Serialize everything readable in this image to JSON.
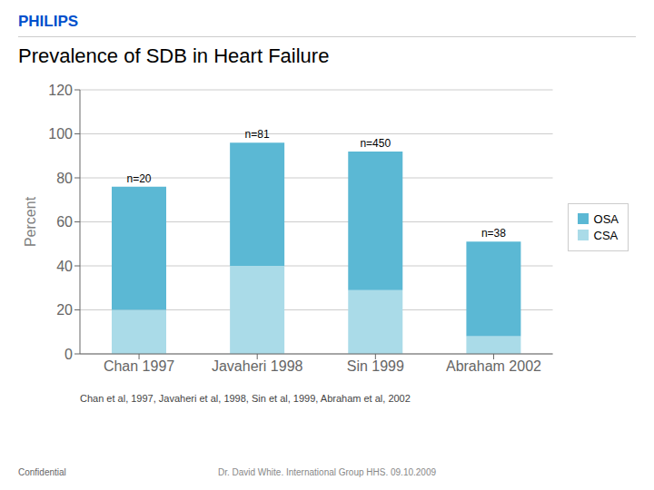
{
  "chart_data": {
    "type": "bar",
    "title": "Prevalence of SDB in Heart Failure",
    "y_label": "Percent",
    "categories": [
      "Chan 1997",
      "Javaheri 1998",
      "Sin 1999",
      "Abraham 2002"
    ],
    "series": [
      {
        "name": "CSA",
        "color": "#aadbe8",
        "values": [
          20,
          40,
          29,
          8
        ]
      },
      {
        "name": "OSA",
        "color": "#5bb8d4",
        "values": [
          56,
          56,
          63,
          43
        ]
      }
    ],
    "n_labels": [
      "n=20",
      "n=81",
      "n=450",
      "n=38"
    ],
    "stacked": true,
    "ylim": [
      0,
      120
    ],
    "yticks": [
      0,
      20,
      40,
      60,
      80,
      100,
      120
    ],
    "grid": true,
    "legend": "right",
    "annotations": [
      {
        "text": "PHILIPS",
        "color": "#0050cc"
      },
      {
        "text": "Chan et al, 1997, Javaheri et al, 1998, Sin et al, 1999, Abraham et al, 2002"
      },
      {
        "text": "Confidential"
      },
      {
        "text": "Dr. David White. International Group HHS. 09.10.2009"
      }
    ]
  }
}
